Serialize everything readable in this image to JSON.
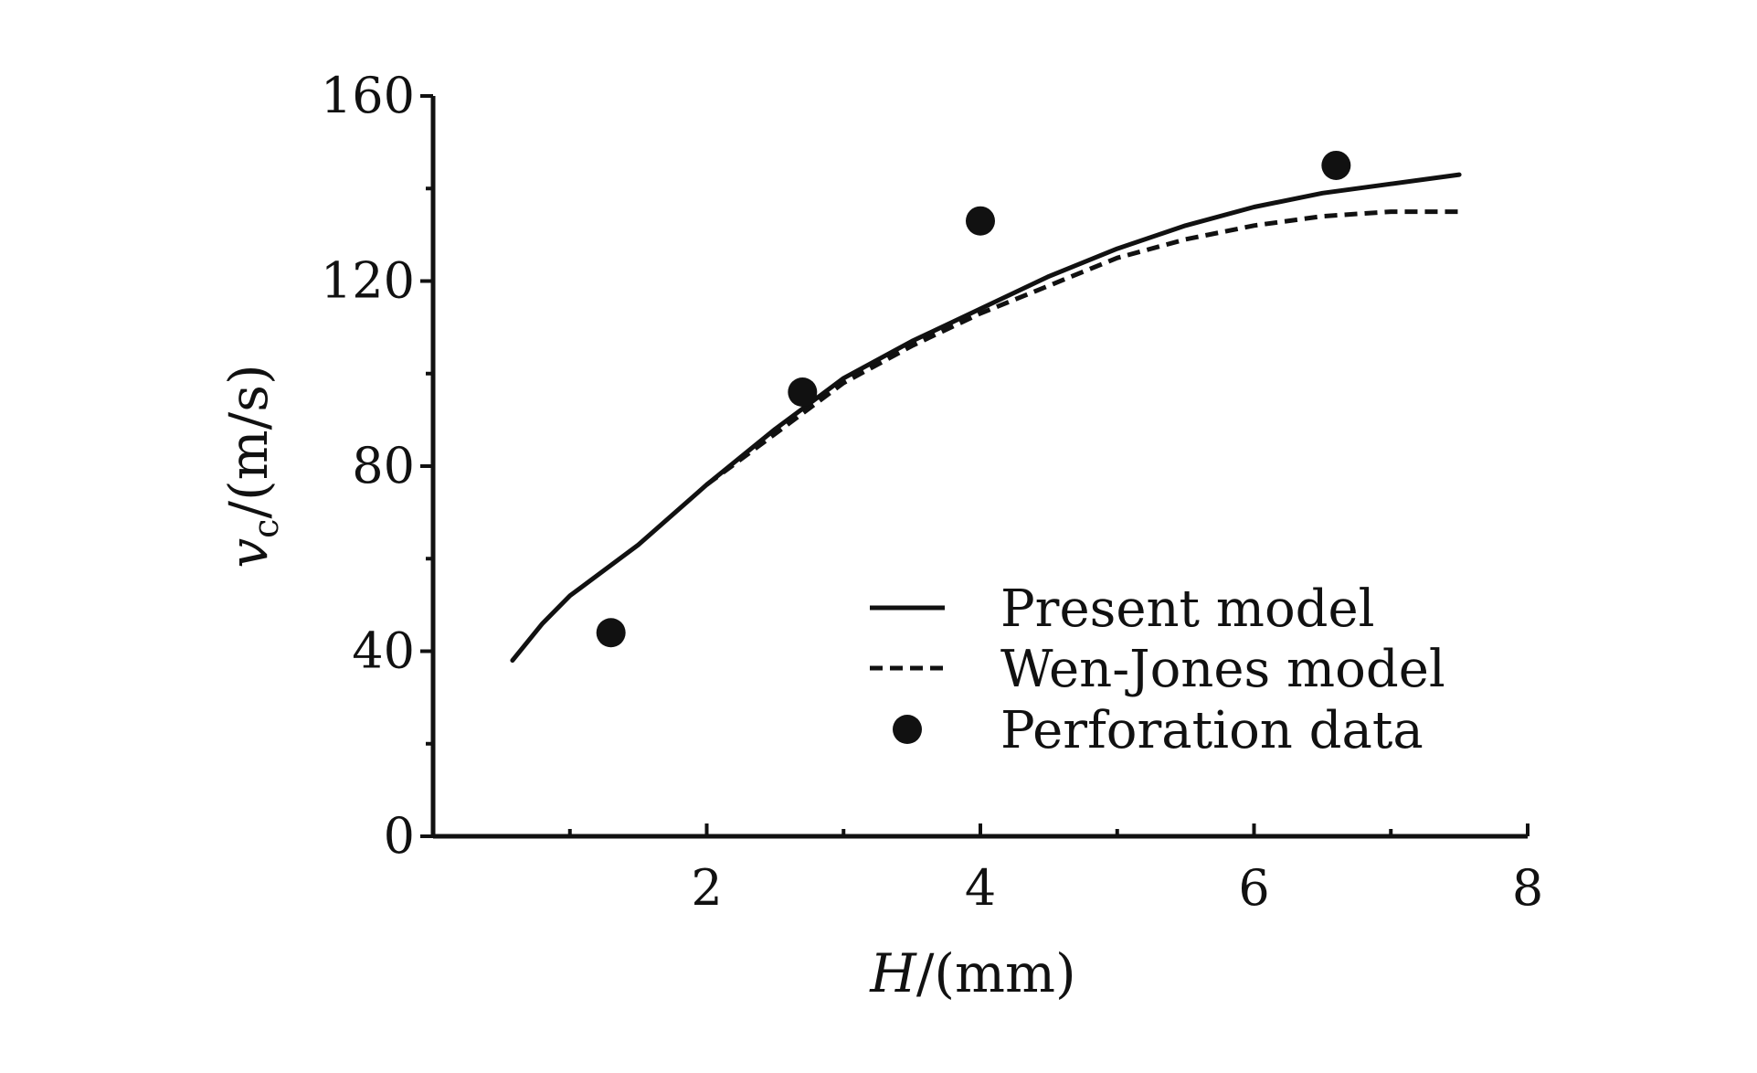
{
  "chart_data": {
    "type": "line",
    "xlabel_var": "H",
    "xlabel_unit": "/(mm)",
    "ylabel_var": "v",
    "ylabel_sub": "c",
    "ylabel_unit": "/(m/s)",
    "xlim": [
      0,
      8
    ],
    "ylim": [
      0,
      160
    ],
    "x_ticks": [
      2,
      4,
      6,
      8
    ],
    "y_ticks": [
      0,
      40,
      80,
      120,
      160
    ],
    "x_minor_ticks": [
      1,
      3,
      5,
      7
    ],
    "y_minor_ticks": [
      20,
      60,
      100,
      140
    ],
    "grid": false,
    "legend_position": "lower-right",
    "series": [
      {
        "name": "Present model",
        "style": "solid",
        "color": "#111111",
        "x": [
          0.58,
          0.8,
          1.0,
          1.5,
          2.0,
          2.5,
          3.0,
          3.5,
          4.0,
          4.5,
          5.0,
          5.5,
          6.0,
          6.5,
          7.0,
          7.5
        ],
        "y": [
          38,
          46,
          52,
          63,
          76,
          88,
          99,
          107,
          114,
          121,
          127,
          132,
          136,
          139,
          141,
          143
        ]
      },
      {
        "name": "Wen-Jones model",
        "style": "dashed",
        "color": "#111111",
        "x": [
          2.0,
          2.5,
          3.0,
          3.5,
          4.0,
          4.5,
          5.0,
          5.5,
          6.0,
          6.5,
          7.0,
          7.5
        ],
        "y": [
          76,
          87,
          98,
          106,
          113,
          119,
          125,
          129,
          132,
          134,
          135,
          135
        ]
      },
      {
        "name": "Perforation data",
        "style": "marker",
        "color": "#111111",
        "x": [
          1.3,
          2.7,
          4.0,
          6.6
        ],
        "y": [
          44,
          96,
          133,
          145
        ]
      }
    ]
  }
}
